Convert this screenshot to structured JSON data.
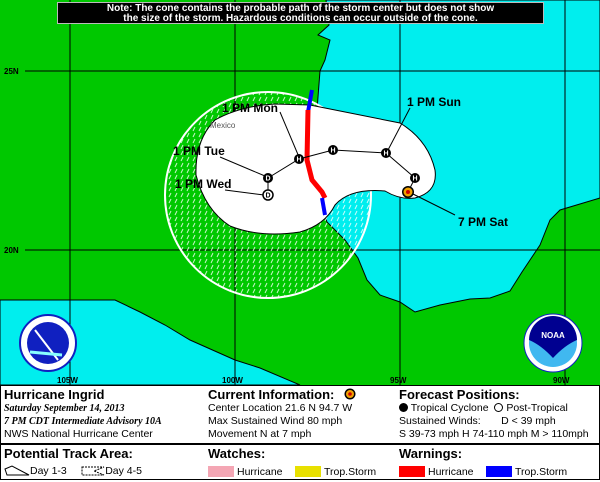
{
  "note": {
    "line1": "Note: The cone contains the probable path of the storm center but does not show",
    "line2": "the size of the storm. Hazardous conditions can occur outside of the cone."
  },
  "map": {
    "lat_labels": [
      "25N",
      "20N"
    ],
    "lon_labels": [
      "105W",
      "100W",
      "95W",
      "90W"
    ],
    "country_label": "Mexico",
    "forecast_labels": [
      "1 PM Mon",
      "1 PM Sun",
      "1 PM Tue",
      "1 PM Wed",
      "7 PM Sat"
    ],
    "points": [
      {
        "label": "7 PM Sat",
        "type": "current"
      },
      {
        "type": "H"
      },
      {
        "type": "H"
      },
      {
        "type": "H"
      },
      {
        "type": "H"
      },
      {
        "type": "D"
      },
      {
        "type": "D",
        "post_tropical": true
      }
    ],
    "colors": {
      "land": "#00c800",
      "water": "#00eeee",
      "cone": "#ffffff",
      "hurricane_warning": "#ff0000",
      "tropical_storm_warning": "#0000ff",
      "hurricane_watch": "#f4a6b4",
      "tropical_storm_watch": "#e8e000"
    },
    "logos": {
      "left": "NWS logo",
      "right": "NOAA",
      "right_text": "NOAA"
    }
  },
  "info": {
    "storm_name": "Hurricane Ingrid",
    "date": "Saturday September 14, 2013",
    "advisory": "7 PM CDT Intermediate Advisory 10A",
    "center": "NWS National Hurricane Center",
    "current_title": "Current Information:",
    "location": "Center Location 21.6 N  94.7 W",
    "wind": "Max Sustained Wind  80 mph",
    "movement": "Movement N at  7 mph",
    "forecast_title": "Forecast Positions:",
    "tropical": "Tropical Cyclone",
    "post": "Post-Tropical",
    "sustained": "Sustained Winds:",
    "d_def": "D  < 39 mph",
    "scale": "S  39-73 mph  H  74-110 mph  M  > 110mph"
  },
  "legend": {
    "track_title": "Potential Track Area:",
    "day13": "Day 1-3",
    "day45": "Day 4-5",
    "watches_title": "Watches:",
    "warnings_title": "Warnings:",
    "hurricane": "Hurricane",
    "trop_storm": "Trop.Storm"
  }
}
